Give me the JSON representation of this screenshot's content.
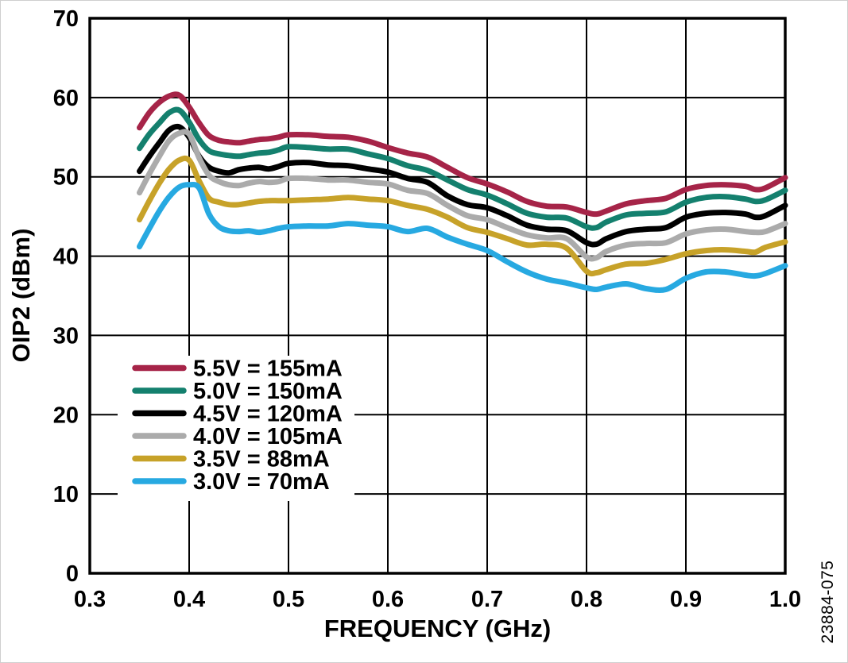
{
  "figure": {
    "watermark": "23884-075"
  },
  "chart_data": {
    "type": "line",
    "title": "",
    "xlabel": "FREQUENCY (GHz)",
    "ylabel": "OIP2 (dBm)",
    "xlim": [
      0.3,
      1.0
    ],
    "ylim": [
      0,
      70
    ],
    "grid": true,
    "legend_position": "inside-lower-left",
    "x_tick_labels": [
      "0.3",
      "0.4",
      "0.5",
      "0.6",
      "0.7",
      "0.8",
      "0.9",
      "1.0"
    ],
    "x_ticks": [
      0.3,
      0.4,
      0.5,
      0.6,
      0.7,
      0.8,
      0.9,
      1.0
    ],
    "y_tick_labels": [
      "0",
      "10",
      "20",
      "30",
      "40",
      "50",
      "60",
      "70"
    ],
    "y_ticks": [
      0,
      10,
      20,
      30,
      40,
      50,
      60,
      70
    ],
    "x": [
      0.35,
      0.36,
      0.37,
      0.38,
      0.39,
      0.4,
      0.41,
      0.42,
      0.43,
      0.44,
      0.45,
      0.46,
      0.47,
      0.48,
      0.49,
      0.5,
      0.52,
      0.54,
      0.56,
      0.58,
      0.6,
      0.62,
      0.64,
      0.66,
      0.68,
      0.7,
      0.72,
      0.74,
      0.76,
      0.78,
      0.8,
      0.81,
      0.82,
      0.84,
      0.86,
      0.88,
      0.9,
      0.92,
      0.94,
      0.96,
      0.97,
      0.98,
      1.0
    ],
    "series": [
      {
        "name": "5.5V = 155mA",
        "color": "#A62448",
        "values": [
          56.2,
          58.1,
          59.4,
          60.2,
          60.3,
          58.8,
          56.8,
          55.2,
          54.6,
          54.4,
          54.3,
          54.5,
          54.7,
          54.8,
          55.0,
          55.3,
          55.3,
          55.1,
          55.0,
          54.5,
          53.7,
          53.0,
          52.5,
          51.2,
          49.9,
          49.1,
          48.1,
          46.9,
          46.3,
          46.2,
          45.5,
          45.3,
          45.7,
          46.6,
          47.0,
          47.3,
          48.4,
          48.9,
          49.0,
          48.8,
          48.4,
          48.6,
          49.9
        ]
      },
      {
        "name": "5.0V = 150mA",
        "color": "#14806E",
        "values": [
          53.6,
          55.4,
          56.8,
          58.1,
          58.4,
          56.9,
          54.7,
          53.3,
          52.9,
          52.7,
          52.6,
          52.8,
          53.0,
          53.1,
          53.4,
          53.8,
          53.7,
          53.5,
          53.5,
          52.9,
          52.3,
          51.4,
          50.8,
          49.6,
          48.4,
          47.7,
          46.6,
          45.4,
          44.9,
          44.8,
          43.7,
          43.6,
          44.3,
          45.2,
          45.4,
          45.6,
          46.8,
          47.4,
          47.5,
          47.2,
          46.9,
          47.1,
          48.3
        ]
      },
      {
        "name": "4.5V = 120mA",
        "color": "#000000",
        "values": [
          50.7,
          52.6,
          54.3,
          55.9,
          56.3,
          55.0,
          52.6,
          51.2,
          50.7,
          50.5,
          50.9,
          51.1,
          51.2,
          51.0,
          51.3,
          51.7,
          51.8,
          51.5,
          51.4,
          51.0,
          50.6,
          49.8,
          49.3,
          47.6,
          46.5,
          46.1,
          45.1,
          43.9,
          43.4,
          43.2,
          41.7,
          41.5,
          42.2,
          43.1,
          43.4,
          43.6,
          44.9,
          45.4,
          45.5,
          45.3,
          44.9,
          45.1,
          46.4
        ]
      },
      {
        "name": "4.0V = 105mA",
        "color": "#ABABAB",
        "values": [
          48.0,
          50.4,
          52.6,
          54.6,
          55.5,
          55.4,
          52.4,
          50.2,
          49.4,
          49.0,
          48.9,
          49.2,
          49.4,
          49.3,
          49.4,
          49.8,
          49.8,
          49.6,
          49.6,
          49.3,
          49.1,
          48.3,
          47.9,
          46.4,
          45.1,
          44.6,
          43.6,
          42.7,
          42.3,
          42.2,
          39.9,
          39.8,
          40.6,
          41.4,
          41.6,
          41.7,
          42.8,
          43.3,
          43.4,
          43.1,
          43.0,
          43.1,
          44.1
        ]
      },
      {
        "name": "3.5V = 88mA",
        "color": "#C7A229",
        "values": [
          44.6,
          47.0,
          49.2,
          51.0,
          52.1,
          52.1,
          49.5,
          47.3,
          46.8,
          46.5,
          46.5,
          46.7,
          46.9,
          47.0,
          47.0,
          47.0,
          47.1,
          47.2,
          47.4,
          47.2,
          47.0,
          46.4,
          45.9,
          44.9,
          43.6,
          43.0,
          42.2,
          41.4,
          41.5,
          41.0,
          38.1,
          37.9,
          38.3,
          39.0,
          39.1,
          39.6,
          40.3,
          40.7,
          40.8,
          40.6,
          40.5,
          41.1,
          41.8
        ]
      },
      {
        "name": "3.0V = 70mA",
        "color": "#27A9E1",
        "values": [
          41.2,
          43.5,
          45.7,
          47.5,
          48.7,
          49.0,
          48.6,
          45.3,
          43.7,
          43.2,
          43.1,
          43.2,
          43.0,
          43.2,
          43.5,
          43.7,
          43.8,
          43.8,
          44.1,
          43.9,
          43.7,
          43.1,
          43.5,
          42.4,
          41.5,
          40.7,
          39.3,
          38.0,
          37.1,
          36.6,
          36.0,
          35.8,
          36.1,
          36.5,
          35.9,
          35.8,
          37.2,
          38.0,
          38.0,
          37.6,
          37.5,
          37.8,
          38.8
        ]
      }
    ]
  }
}
